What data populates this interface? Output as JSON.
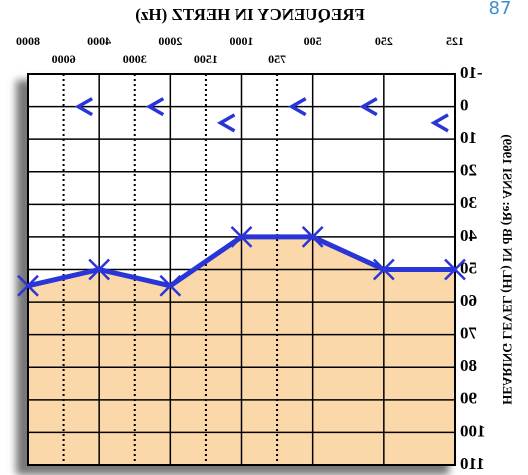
{
  "chart_data": {
    "type": "line",
    "title": "FREQUENCY IN HERTZ (Hz)",
    "y_label": "HEARING LEVEL (HL) IN dB (Re: ANSI 1969)",
    "page_number": "87",
    "categories": [
      "125",
      "250",
      "500",
      "1000",
      "2000",
      "4000",
      "8000"
    ],
    "mid_categories": [
      "750",
      "1500",
      "3000",
      "6000"
    ],
    "ylim": [
      -10,
      110
    ],
    "y_inverted": true,
    "yticks": [
      -10,
      0,
      10,
      20,
      30,
      40,
      50,
      60,
      70,
      80,
      90,
      100,
      110
    ],
    "grid": true,
    "mirrored": true,
    "fill_color": "#fbd8a9",
    "series": [
      {
        "color": "#2a35d8",
        "marker": "x",
        "values": [
          50,
          50,
          40,
          40,
          55,
          50,
          55
        ]
      },
      {
        "color": "#2a35d8",
        "marker": "caret",
        "values": [
          5,
          0,
          0,
          5,
          0,
          0,
          null
        ]
      }
    ]
  }
}
